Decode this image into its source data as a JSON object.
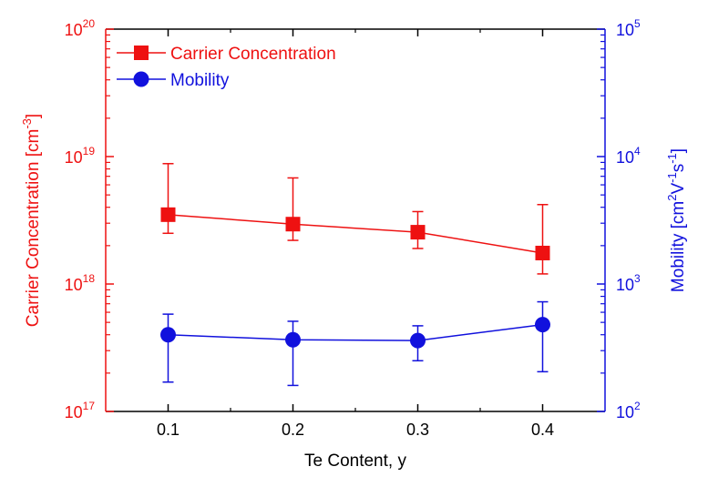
{
  "chart_data": {
    "type": "line",
    "title": "",
    "xlabel": "Te Content, y",
    "x": [
      0.1,
      0.2,
      0.3,
      0.4
    ],
    "x_ticks": [
      "0.1",
      "0.2",
      "0.3",
      "0.4"
    ],
    "xlim": [
      0.05,
      0.45
    ],
    "grid": false,
    "legend_position": "top-left",
    "left_axis": {
      "label": "Carrier Concentration [cm",
      "label_sup": "-3",
      "label_end": "]",
      "scale": "log",
      "ylim": [
        1e+17,
        1e+20
      ],
      "color": "#ee1111",
      "ticks": [
        {
          "base": "10",
          "exp": "17"
        },
        {
          "base": "10",
          "exp": "18"
        },
        {
          "base": "10",
          "exp": "19"
        },
        {
          "base": "10",
          "exp": "20"
        }
      ]
    },
    "right_axis": {
      "label_parts": [
        {
          "t": "Mobility [cm",
          "sup": false
        },
        {
          "t": "2",
          "sup": true
        },
        {
          "t": "V",
          "sup": false
        },
        {
          "t": "-1",
          "sup": true
        },
        {
          "t": "s",
          "sup": false
        },
        {
          "t": "-1",
          "sup": true
        },
        {
          "t": "]",
          "sup": false
        }
      ],
      "scale": "log",
      "ylim": [
        100,
        100000
      ],
      "color": "#1111dd",
      "ticks": [
        {
          "base": "10",
          "exp": "2"
        },
        {
          "base": "10",
          "exp": "3"
        },
        {
          "base": "10",
          "exp": "4"
        },
        {
          "base": "10",
          "exp": "5"
        }
      ]
    },
    "series": [
      {
        "name": "Carrier Concentration",
        "axis": "left",
        "marker": "square",
        "color": "#ee1111",
        "values": [
          3.5e+18,
          2.95e+18,
          2.55e+18,
          1.75e+18
        ],
        "error_low": [
          2.5e+18,
          2.2e+18,
          1.9e+18,
          1.2e+18
        ],
        "error_high": [
          8.8e+18,
          6.8e+18,
          3.7e+18,
          4.2e+18
        ]
      },
      {
        "name": "Mobility",
        "axis": "right",
        "marker": "circle",
        "color": "#1111dd",
        "values": [
          400,
          365,
          360,
          480
        ],
        "error_low": [
          170,
          160,
          250,
          205
        ],
        "error_high": [
          580,
          510,
          470,
          725
        ]
      }
    ]
  }
}
